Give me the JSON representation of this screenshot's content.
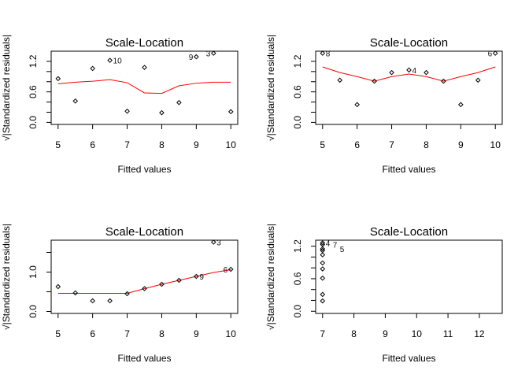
{
  "chart_data": [
    {
      "type": "scatter",
      "title": "Scale-Location",
      "xlabel": "Fitted values",
      "ylabel": "√|Standardized residuals|",
      "xlim": [
        4.8,
        10.2
      ],
      "ylim": [
        -0.04,
        1.4
      ],
      "xticks": [
        5,
        6,
        7,
        8,
        9,
        10
      ],
      "yticks": [
        0.0,
        0.2,
        0.4,
        0.6,
        0.8,
        1.0,
        1.2
      ],
      "ytick_labels": {
        "0": "0.0",
        "3": "0.6",
        "6": "1.2"
      },
      "points": [
        [
          5,
          0.86
        ],
        [
          5.5,
          0.42
        ],
        [
          6,
          1.06
        ],
        [
          6.5,
          1.22
        ],
        [
          7,
          0.22
        ],
        [
          7.5,
          1.08
        ],
        [
          8,
          0.19
        ],
        [
          8.5,
          0.39
        ],
        [
          9,
          1.29
        ],
        [
          9.5,
          1.36
        ],
        [
          10,
          0.21
        ]
      ],
      "point_labels": [
        {
          "x": 6.5,
          "y": 1.22,
          "text": "10",
          "side": "right"
        },
        {
          "x": 9,
          "y": 1.29,
          "text": "9",
          "side": "left"
        },
        {
          "x": 9.5,
          "y": 1.36,
          "text": "3",
          "side": "left"
        }
      ],
      "smooth": [
        [
          5,
          0.76
        ],
        [
          5.5,
          0.79
        ],
        [
          6,
          0.81
        ],
        [
          6.5,
          0.84
        ],
        [
          7,
          0.78
        ],
        [
          7.5,
          0.58
        ],
        [
          8,
          0.57
        ],
        [
          8.5,
          0.72
        ],
        [
          9,
          0.77
        ],
        [
          9.5,
          0.79
        ],
        [
          10,
          0.79
        ]
      ]
    },
    {
      "type": "scatter",
      "title": "Scale-Location",
      "xlabel": "Fitted values",
      "ylabel": "√|Standardized residuals|",
      "xlim": [
        4.8,
        10.2
      ],
      "ylim": [
        -0.04,
        1.4
      ],
      "xticks": [
        5,
        6,
        7,
        8,
        9,
        10
      ],
      "yticks": [
        0.0,
        0.2,
        0.4,
        0.6,
        0.8,
        1.0,
        1.2
      ],
      "ytick_labels": {
        "0": "0.0",
        "3": "0.6",
        "6": "1.2"
      },
      "points": [
        [
          5,
          1.36
        ],
        [
          5.5,
          0.83
        ],
        [
          6,
          0.35
        ],
        [
          6.5,
          0.81
        ],
        [
          7,
          0.98
        ],
        [
          7.5,
          1.03
        ],
        [
          8,
          0.98
        ],
        [
          8.5,
          0.81
        ],
        [
          9,
          0.35
        ],
        [
          9.5,
          0.83
        ],
        [
          10,
          1.36
        ]
      ],
      "point_labels": [
        {
          "x": 5,
          "y": 1.36,
          "text": "8",
          "side": "right"
        },
        {
          "x": 7.5,
          "y": 1.03,
          "text": "4",
          "side": "right"
        },
        {
          "x": 10,
          "y": 1.36,
          "text": "6",
          "side": "left"
        }
      ],
      "smooth": [
        [
          5,
          1.09
        ],
        [
          5.5,
          0.98
        ],
        [
          6,
          0.9
        ],
        [
          6.5,
          0.81
        ],
        [
          7,
          0.9
        ],
        [
          7.5,
          0.95
        ],
        [
          8,
          0.9
        ],
        [
          8.5,
          0.81
        ],
        [
          9,
          0.9
        ],
        [
          9.5,
          0.98
        ],
        [
          10,
          1.09
        ]
      ]
    },
    {
      "type": "scatter",
      "title": "Scale-Location",
      "xlabel": "Fitted values",
      "ylabel": "√|Standardized residuals|",
      "xlim": [
        4.8,
        10.2
      ],
      "ylim": [
        -0.05,
        1.81
      ],
      "xticks": [
        5,
        6,
        7,
        8,
        9,
        10
      ],
      "yticks": [
        0.0,
        0.5,
        1.0,
        1.5
      ],
      "ytick_labels": {
        "0": "0.0",
        "2": "1.0"
      },
      "points": [
        [
          5,
          0.63
        ],
        [
          5.5,
          0.47
        ],
        [
          6,
          0.27
        ],
        [
          6.5,
          0.27
        ],
        [
          7,
          0.45
        ],
        [
          7.5,
          0.58
        ],
        [
          8,
          0.69
        ],
        [
          8.5,
          0.79
        ],
        [
          9,
          0.89
        ],
        [
          9.5,
          1.76
        ],
        [
          10,
          1.07
        ]
      ],
      "point_labels": [
        {
          "x": 9.5,
          "y": 1.76,
          "text": "3",
          "side": "right"
        },
        {
          "x": 9,
          "y": 0.89,
          "text": "9",
          "side": "right"
        },
        {
          "x": 10,
          "y": 1.07,
          "text": "6",
          "side": "left"
        }
      ],
      "smooth": [
        [
          5,
          0.46
        ],
        [
          5.5,
          0.46
        ],
        [
          6,
          0.46
        ],
        [
          6.5,
          0.46
        ],
        [
          7,
          0.46
        ],
        [
          7.5,
          0.58
        ],
        [
          8,
          0.69
        ],
        [
          8.5,
          0.79
        ],
        [
          9,
          0.89
        ],
        [
          9.5,
          0.99
        ],
        [
          10,
          1.06
        ]
      ]
    },
    {
      "type": "scatter",
      "title": "Scale-Location",
      "xlabel": "Fitted values",
      "ylabel": "√|Standardized residuals|",
      "xlim": [
        6.78,
        12.73
      ],
      "ylim": [
        -0.04,
        1.31
      ],
      "xticks": [
        7,
        8,
        9,
        10,
        11,
        12
      ],
      "yticks": [
        0.0,
        0.2,
        0.4,
        0.6,
        0.8,
        1.0,
        1.2
      ],
      "ytick_labels": {
        "0": "0.0",
        "3": "0.6",
        "6": "1.2"
      },
      "points": [
        [
          7,
          0.19
        ],
        [
          7,
          0.31
        ],
        [
          7,
          0.61
        ],
        [
          7,
          0.78
        ],
        [
          7,
          0.89
        ],
        [
          7,
          1.04
        ],
        [
          7,
          1.12
        ],
        [
          7,
          1.15
        ],
        [
          7,
          1.23
        ],
        [
          7,
          1.26
        ]
      ],
      "point_labels": [
        {
          "x": 7,
          "y": 1.26,
          "text": "4",
          "side": "right"
        },
        {
          "x": 7,
          "y": 1.23,
          "text": "7",
          "side": "right"
        },
        {
          "x": 7,
          "y": 1.15,
          "text": "5",
          "side": "right"
        }
      ],
      "smooth": []
    }
  ],
  "colors": {
    "points": "#000000",
    "smooth": "#ff0000",
    "labels": "#111111"
  }
}
